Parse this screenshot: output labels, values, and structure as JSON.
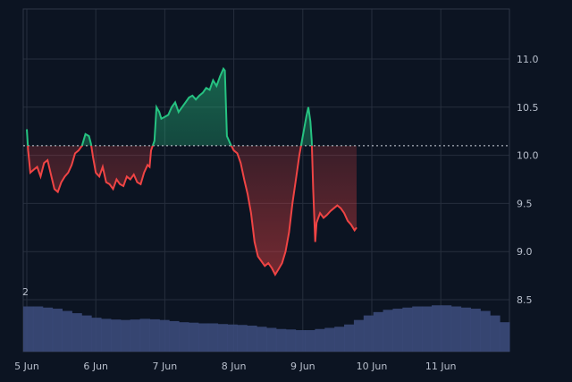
{
  "chart_data": {
    "type": "area",
    "baseline": 10.1,
    "colors": {
      "above": "#26c281",
      "below": "#ef4444",
      "volume": "#3b4a7a",
      "background": "#0c1422"
    },
    "ylim": [
      8.0,
      11.5
    ],
    "y_ticks": [
      "11.0",
      "10.5",
      "10.0",
      "9.5",
      "9.0",
      "8.5"
    ],
    "x_ticks": [
      "5 Jun",
      "6 Jun",
      "7 Jun",
      "8 Jun",
      "9 Jun",
      "10 Jun",
      "11 Jun"
    ],
    "volume_label": "2",
    "series": [
      {
        "role": "price",
        "points": [
          [
            5.0,
            10.27
          ],
          [
            5.02,
            10.05
          ],
          [
            5.05,
            9.82
          ],
          [
            5.1,
            9.85
          ],
          [
            5.15,
            9.88
          ],
          [
            5.2,
            9.78
          ],
          [
            5.25,
            9.92
          ],
          [
            5.3,
            9.95
          ],
          [
            5.35,
            9.8
          ],
          [
            5.4,
            9.65
          ],
          [
            5.45,
            9.62
          ],
          [
            5.5,
            9.72
          ],
          [
            5.55,
            9.78
          ],
          [
            5.6,
            9.82
          ],
          [
            5.65,
            9.9
          ],
          [
            5.7,
            10.02
          ],
          [
            5.75,
            10.05
          ],
          [
            5.8,
            10.1
          ],
          [
            5.85,
            10.22
          ],
          [
            5.9,
            10.2
          ],
          [
            5.93,
            10.12
          ],
          [
            5.96,
            9.98
          ],
          [
            6.0,
            9.82
          ],
          [
            6.05,
            9.78
          ],
          [
            6.1,
            9.88
          ],
          [
            6.15,
            9.72
          ],
          [
            6.2,
            9.7
          ],
          [
            6.25,
            9.65
          ],
          [
            6.3,
            9.75
          ],
          [
            6.35,
            9.7
          ],
          [
            6.4,
            9.68
          ],
          [
            6.45,
            9.78
          ],
          [
            6.5,
            9.75
          ],
          [
            6.55,
            9.8
          ],
          [
            6.6,
            9.72
          ],
          [
            6.65,
            9.7
          ],
          [
            6.7,
            9.82
          ],
          [
            6.75,
            9.9
          ],
          [
            6.78,
            9.88
          ],
          [
            6.8,
            10.05
          ],
          [
            6.85,
            10.15
          ],
          [
            6.88,
            10.5
          ],
          [
            6.92,
            10.45
          ],
          [
            6.95,
            10.38
          ],
          [
            7.0,
            10.4
          ],
          [
            7.05,
            10.42
          ],
          [
            7.1,
            10.5
          ],
          [
            7.15,
            10.55
          ],
          [
            7.2,
            10.45
          ],
          [
            7.25,
            10.5
          ],
          [
            7.3,
            10.55
          ],
          [
            7.35,
            10.6
          ],
          [
            7.4,
            10.62
          ],
          [
            7.45,
            10.58
          ],
          [
            7.5,
            10.62
          ],
          [
            7.55,
            10.65
          ],
          [
            7.6,
            10.7
          ],
          [
            7.65,
            10.68
          ],
          [
            7.7,
            10.78
          ],
          [
            7.75,
            10.72
          ],
          [
            7.8,
            10.82
          ],
          [
            7.85,
            10.9
          ],
          [
            7.87,
            10.88
          ],
          [
            7.9,
            10.2
          ],
          [
            7.95,
            10.12
          ],
          [
            8.0,
            10.05
          ],
          [
            8.05,
            10.02
          ],
          [
            8.1,
            9.92
          ],
          [
            8.15,
            9.75
          ],
          [
            8.2,
            9.6
          ],
          [
            8.25,
            9.4
          ],
          [
            8.3,
            9.1
          ],
          [
            8.35,
            8.95
          ],
          [
            8.4,
            8.9
          ],
          [
            8.45,
            8.85
          ],
          [
            8.5,
            8.88
          ],
          [
            8.55,
            8.83
          ],
          [
            8.6,
            8.76
          ],
          [
            8.65,
            8.82
          ],
          [
            8.7,
            8.88
          ],
          [
            8.75,
            9.0
          ],
          [
            8.8,
            9.2
          ],
          [
            8.85,
            9.5
          ],
          [
            8.9,
            9.75
          ],
          [
            8.95,
            10.0
          ],
          [
            9.0,
            10.2
          ],
          [
            9.05,
            10.4
          ],
          [
            9.08,
            10.5
          ],
          [
            9.11,
            10.35
          ],
          [
            9.13,
            10.15
          ],
          [
            9.15,
            9.65
          ],
          [
            9.18,
            9.1
          ],
          [
            9.2,
            9.3
          ],
          [
            9.25,
            9.4
          ],
          [
            9.3,
            9.35
          ],
          [
            9.35,
            9.38
          ],
          [
            9.4,
            9.42
          ],
          [
            9.45,
            9.45
          ],
          [
            9.5,
            9.48
          ],
          [
            9.55,
            9.45
          ],
          [
            9.6,
            9.4
          ],
          [
            9.65,
            9.32
          ],
          [
            9.7,
            9.28
          ],
          [
            9.75,
            9.22
          ],
          [
            9.78,
            9.25
          ]
        ]
      }
    ],
    "volume": [
      2.0,
      2.0,
      1.95,
      1.9,
      1.8,
      1.7,
      1.6,
      1.5,
      1.45,
      1.42,
      1.4,
      1.42,
      1.45,
      1.43,
      1.4,
      1.35,
      1.3,
      1.28,
      1.25,
      1.25,
      1.22,
      1.2,
      1.18,
      1.15,
      1.1,
      1.05,
      1.0,
      0.98,
      0.95,
      0.95,
      1.0,
      1.05,
      1.1,
      1.2,
      1.4,
      1.6,
      1.75,
      1.85,
      1.9,
      1.95,
      2.0,
      2.0,
      2.05,
      2.05,
      2.0,
      1.95,
      1.9,
      1.8,
      1.6,
      1.3
    ]
  }
}
